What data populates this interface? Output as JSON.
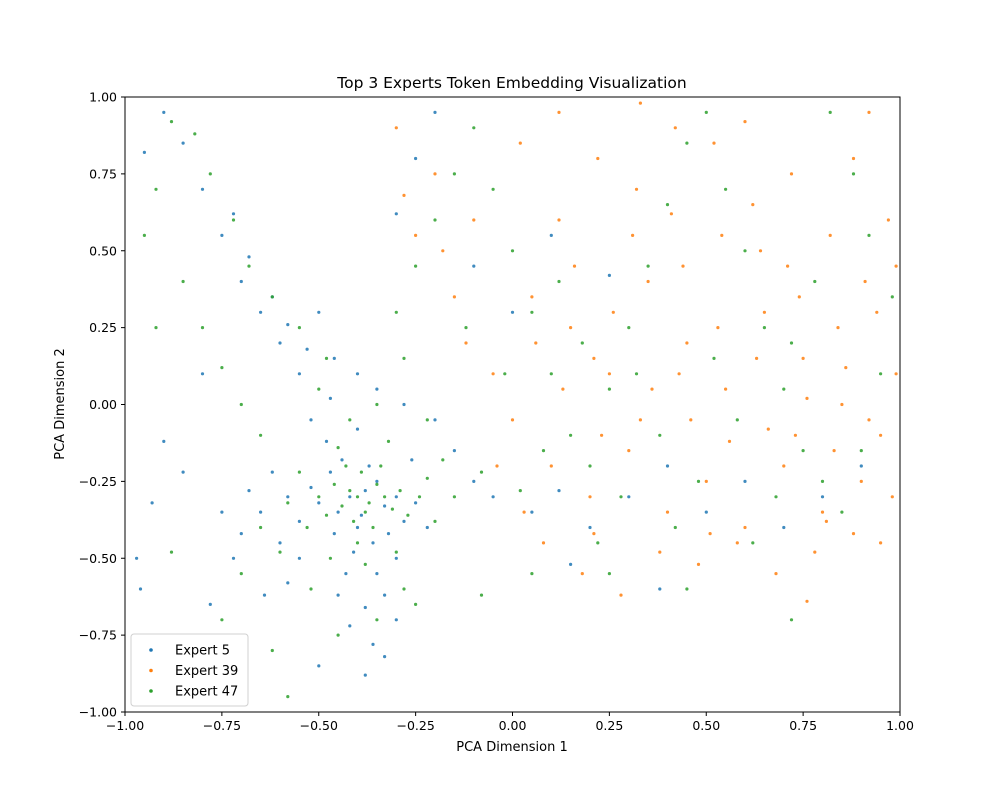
{
  "chart_data": {
    "type": "scatter",
    "title": "Top 3 Experts Token Embedding Visualization",
    "xlabel": "PCA Dimension 1",
    "ylabel": "PCA Dimension 2",
    "xlim": [
      -1.0,
      1.0
    ],
    "ylim": [
      -1.0,
      1.0
    ],
    "xticks": [
      "−1.00",
      "−0.75",
      "−0.50",
      "−0.25",
      "0.00",
      "0.25",
      "0.50",
      "0.75",
      "1.00"
    ],
    "yticks": [
      "−1.00",
      "−0.75",
      "−0.50",
      "−0.25",
      "0.00",
      "0.25",
      "0.50",
      "0.75",
      "1.00"
    ],
    "grid": false,
    "legend_position": "lower-left",
    "series": [
      {
        "name": "Expert 5",
        "color": "#1f77b4",
        "points": [
          [
            -0.42,
            -0.3
          ],
          [
            -0.38,
            -0.28
          ],
          [
            -0.45,
            -0.35
          ],
          [
            -0.35,
            -0.25
          ],
          [
            -0.5,
            -0.32
          ],
          [
            -0.4,
            -0.4
          ],
          [
            -0.33,
            -0.33
          ],
          [
            -0.47,
            -0.22
          ],
          [
            -0.36,
            -0.45
          ],
          [
            -0.55,
            -0.38
          ],
          [
            -0.3,
            -0.3
          ],
          [
            -0.44,
            -0.18
          ],
          [
            -0.39,
            -0.36
          ],
          [
            -0.52,
            -0.27
          ],
          [
            -0.41,
            -0.48
          ],
          [
            -0.28,
            -0.38
          ],
          [
            -0.58,
            -0.3
          ],
          [
            -0.37,
            -0.2
          ],
          [
            -0.46,
            -0.42
          ],
          [
            -0.32,
            -0.42
          ],
          [
            -0.6,
            -0.45
          ],
          [
            -0.43,
            -0.55
          ],
          [
            -0.35,
            -0.55
          ],
          [
            -0.65,
            -0.35
          ],
          [
            -0.25,
            -0.32
          ],
          [
            -0.48,
            -0.12
          ],
          [
            -0.4,
            -0.08
          ],
          [
            -0.55,
            -0.5
          ],
          [
            -0.62,
            -0.22
          ],
          [
            -0.3,
            -0.5
          ],
          [
            -0.7,
            -0.42
          ],
          [
            -0.45,
            -0.62
          ],
          [
            -0.38,
            -0.66
          ],
          [
            -0.22,
            -0.4
          ],
          [
            -0.52,
            -0.05
          ],
          [
            -0.68,
            -0.28
          ],
          [
            -0.58,
            -0.58
          ],
          [
            -0.33,
            -0.62
          ],
          [
            -0.72,
            -0.5
          ],
          [
            -0.47,
            0.02
          ],
          [
            -0.26,
            -0.18
          ],
          [
            -0.75,
            -0.35
          ],
          [
            -0.42,
            -0.72
          ],
          [
            -0.36,
            -0.78
          ],
          [
            -0.3,
            -0.7
          ],
          [
            -0.64,
            -0.62
          ],
          [
            -0.55,
            0.1
          ],
          [
            -0.6,
            0.2
          ],
          [
            -0.65,
            0.3
          ],
          [
            -0.7,
            0.4
          ],
          [
            -0.75,
            0.55
          ],
          [
            -0.8,
            0.7
          ],
          [
            -0.85,
            0.85
          ],
          [
            -0.9,
            0.95
          ],
          [
            -0.95,
            0.82
          ],
          [
            -0.97,
            -0.5
          ],
          [
            -0.96,
            -0.6
          ],
          [
            -0.93,
            -0.32
          ],
          [
            -0.9,
            -0.12
          ],
          [
            -0.85,
            -0.22
          ],
          [
            -0.8,
            0.1
          ],
          [
            -0.78,
            -0.65
          ],
          [
            -0.72,
            0.62
          ],
          [
            -0.68,
            0.48
          ],
          [
            -0.62,
            0.35
          ],
          [
            -0.58,
            0.26
          ],
          [
            -0.53,
            0.18
          ],
          [
            -0.5,
            0.3
          ],
          [
            -0.46,
            0.15
          ],
          [
            -0.4,
            0.1
          ],
          [
            -0.35,
            0.05
          ],
          [
            -0.28,
            0.0
          ],
          [
            -0.2,
            -0.05
          ],
          [
            -0.15,
            -0.15
          ],
          [
            -0.1,
            -0.25
          ],
          [
            -0.05,
            -0.3
          ],
          [
            0.05,
            -0.35
          ],
          [
            0.12,
            -0.28
          ],
          [
            0.2,
            -0.4
          ],
          [
            0.3,
            -0.3
          ],
          [
            0.4,
            -0.2
          ],
          [
            0.5,
            -0.35
          ],
          [
            0.6,
            -0.25
          ],
          [
            0.7,
            -0.4
          ],
          [
            0.8,
            -0.3
          ],
          [
            0.9,
            -0.2
          ],
          [
            0.38,
            -0.6
          ],
          [
            0.15,
            -0.52
          ],
          [
            -0.38,
            -0.88
          ],
          [
            -0.33,
            -0.82
          ],
          [
            -0.5,
            -0.85
          ],
          [
            -0.3,
            0.62
          ],
          [
            -0.25,
            0.8
          ],
          [
            -0.2,
            0.95
          ],
          [
            -0.1,
            0.45
          ],
          [
            0.0,
            0.3
          ],
          [
            0.1,
            0.55
          ],
          [
            0.25,
            0.42
          ]
        ]
      },
      {
        "name": "Expert 39",
        "color": "#ff7f0e",
        "points": [
          [
            0.05,
            0.35
          ],
          [
            0.15,
            0.25
          ],
          [
            0.25,
            0.1
          ],
          [
            0.35,
            0.4
          ],
          [
            0.45,
            0.2
          ],
          [
            0.55,
            0.05
          ],
          [
            0.65,
            0.3
          ],
          [
            0.75,
            0.15
          ],
          [
            0.85,
            0.0
          ],
          [
            0.95,
            -0.1
          ],
          [
            0.1,
            -0.2
          ],
          [
            0.2,
            -0.3
          ],
          [
            0.3,
            -0.15
          ],
          [
            0.4,
            -0.35
          ],
          [
            0.5,
            -0.25
          ],
          [
            0.6,
            -0.4
          ],
          [
            0.7,
            -0.2
          ],
          [
            0.8,
            -0.35
          ],
          [
            0.9,
            -0.25
          ],
          [
            0.98,
            -0.3
          ],
          [
            0.12,
            0.6
          ],
          [
            0.22,
            0.8
          ],
          [
            0.32,
            0.7
          ],
          [
            0.42,
            0.9
          ],
          [
            0.52,
            0.85
          ],
          [
            0.62,
            0.65
          ],
          [
            0.72,
            0.75
          ],
          [
            0.82,
            0.55
          ],
          [
            0.92,
            0.95
          ],
          [
            0.97,
            0.6
          ],
          [
            -0.3,
            0.9
          ],
          [
            -0.2,
            0.75
          ],
          [
            -0.1,
            0.6
          ],
          [
            -0.25,
            0.55
          ],
          [
            -0.15,
            0.35
          ],
          [
            -0.05,
            0.1
          ],
          [
            0.0,
            -0.05
          ],
          [
            0.08,
            -0.45
          ],
          [
            0.18,
            -0.55
          ],
          [
            0.28,
            -0.62
          ],
          [
            0.38,
            -0.48
          ],
          [
            0.48,
            -0.52
          ],
          [
            0.58,
            -0.45
          ],
          [
            0.68,
            -0.55
          ],
          [
            0.78,
            -0.48
          ],
          [
            0.88,
            -0.42
          ],
          [
            0.95,
            -0.45
          ],
          [
            0.76,
            -0.64
          ],
          [
            0.44,
            0.45
          ],
          [
            0.54,
            0.55
          ],
          [
            0.64,
            0.5
          ],
          [
            0.74,
            0.35
          ],
          [
            0.84,
            0.25
          ],
          [
            0.94,
            0.3
          ],
          [
            0.86,
            0.12
          ],
          [
            0.76,
            0.02
          ],
          [
            0.66,
            -0.08
          ],
          [
            0.56,
            -0.12
          ],
          [
            0.46,
            -0.05
          ],
          [
            0.36,
            0.05
          ],
          [
            0.26,
            0.3
          ],
          [
            0.16,
            0.45
          ],
          [
            0.06,
            0.2
          ],
          [
            -0.04,
            -0.2
          ],
          [
            -0.12,
            0.2
          ],
          [
            -0.18,
            0.5
          ],
          [
            -0.28,
            0.68
          ],
          [
            0.02,
            0.85
          ],
          [
            0.12,
            0.95
          ],
          [
            0.33,
            0.98
          ],
          [
            0.6,
            0.92
          ],
          [
            0.88,
            0.8
          ],
          [
            0.99,
            0.45
          ],
          [
            0.99,
            0.1
          ],
          [
            0.92,
            -0.05
          ],
          [
            0.83,
            -0.15
          ],
          [
            0.73,
            -0.1
          ],
          [
            0.63,
            0.15
          ],
          [
            0.53,
            0.25
          ],
          [
            0.43,
            0.1
          ],
          [
            0.33,
            -0.05
          ],
          [
            0.23,
            -0.1
          ],
          [
            0.13,
            0.05
          ],
          [
            0.03,
            -0.35
          ],
          [
            0.21,
            -0.42
          ],
          [
            0.51,
            -0.42
          ],
          [
            0.81,
            -0.38
          ],
          [
            0.91,
            0.4
          ],
          [
            0.71,
            0.45
          ],
          [
            0.41,
            0.62
          ],
          [
            0.31,
            0.55
          ],
          [
            0.21,
            0.15
          ]
        ]
      },
      {
        "name": "Expert 47",
        "color": "#2ca02c",
        "points": [
          [
            -0.4,
            -0.3
          ],
          [
            -0.37,
            -0.32
          ],
          [
            -0.42,
            -0.28
          ],
          [
            -0.35,
            -0.26
          ],
          [
            -0.38,
            -0.35
          ],
          [
            -0.44,
            -0.33
          ],
          [
            -0.33,
            -0.3
          ],
          [
            -0.39,
            -0.22
          ],
          [
            -0.41,
            -0.38
          ],
          [
            -0.36,
            -0.4
          ],
          [
            -0.46,
            -0.26
          ],
          [
            -0.31,
            -0.34
          ],
          [
            -0.43,
            -0.2
          ],
          [
            -0.34,
            -0.2
          ],
          [
            -0.48,
            -0.36
          ],
          [
            -0.29,
            -0.28
          ],
          [
            -0.4,
            -0.45
          ],
          [
            -0.5,
            -0.3
          ],
          [
            -0.27,
            -0.36
          ],
          [
            -0.45,
            -0.14
          ],
          [
            -0.32,
            -0.12
          ],
          [
            -0.53,
            -0.4
          ],
          [
            -0.24,
            -0.3
          ],
          [
            -0.38,
            -0.52
          ],
          [
            -0.55,
            -0.22
          ],
          [
            -0.22,
            -0.24
          ],
          [
            -0.47,
            -0.5
          ],
          [
            -0.3,
            -0.48
          ],
          [
            -0.58,
            -0.32
          ],
          [
            -0.2,
            -0.38
          ],
          [
            -0.42,
            -0.05
          ],
          [
            -0.35,
            0.0
          ],
          [
            -0.5,
            0.05
          ],
          [
            -0.6,
            -0.48
          ],
          [
            -0.18,
            -0.18
          ],
          [
            -0.52,
            -0.6
          ],
          [
            -0.28,
            -0.6
          ],
          [
            -0.65,
            -0.4
          ],
          [
            -0.15,
            -0.3
          ],
          [
            -0.48,
            0.15
          ],
          [
            -0.55,
            0.25
          ],
          [
            -0.62,
            0.35
          ],
          [
            -0.68,
            0.45
          ],
          [
            -0.72,
            0.6
          ],
          [
            -0.78,
            0.75
          ],
          [
            -0.82,
            0.88
          ],
          [
            -0.88,
            0.92
          ],
          [
            -0.92,
            0.7
          ],
          [
            -0.95,
            0.55
          ],
          [
            -0.85,
            0.4
          ],
          [
            -0.8,
            0.25
          ],
          [
            -0.75,
            0.12
          ],
          [
            -0.7,
            0.0
          ],
          [
            -0.65,
            -0.1
          ],
          [
            -0.7,
            -0.55
          ],
          [
            -0.75,
            -0.7
          ],
          [
            -0.62,
            -0.8
          ],
          [
            -0.58,
            -0.95
          ],
          [
            -0.45,
            -0.75
          ],
          [
            -0.35,
            -0.7
          ],
          [
            -0.25,
            -0.65
          ],
          [
            -0.3,
            0.3
          ],
          [
            -0.25,
            0.45
          ],
          [
            -0.2,
            0.6
          ],
          [
            -0.15,
            0.75
          ],
          [
            -0.1,
            0.9
          ],
          [
            -0.05,
            0.7
          ],
          [
            0.0,
            0.5
          ],
          [
            0.05,
            0.3
          ],
          [
            0.1,
            0.1
          ],
          [
            0.15,
            -0.1
          ],
          [
            0.2,
            -0.2
          ],
          [
            0.25,
            0.05
          ],
          [
            0.3,
            0.25
          ],
          [
            0.35,
            0.45
          ],
          [
            0.4,
            0.65
          ],
          [
            0.45,
            0.85
          ],
          [
            0.5,
            0.95
          ],
          [
            0.55,
            0.7
          ],
          [
            0.6,
            0.5
          ],
          [
            0.65,
            0.25
          ],
          [
            0.7,
            0.05
          ],
          [
            0.75,
            -0.15
          ],
          [
            0.8,
            -0.25
          ],
          [
            0.85,
            -0.35
          ],
          [
            0.9,
            -0.15
          ],
          [
            0.95,
            0.1
          ],
          [
            0.98,
            0.35
          ],
          [
            0.92,
            0.55
          ],
          [
            0.88,
            0.75
          ],
          [
            0.82,
            0.95
          ],
          [
            0.78,
            0.4
          ],
          [
            0.72,
            0.2
          ],
          [
            0.68,
            -0.3
          ],
          [
            0.62,
            -0.45
          ],
          [
            0.58,
            -0.05
          ],
          [
            0.52,
            0.15
          ],
          [
            0.48,
            -0.25
          ],
          [
            0.42,
            -0.4
          ],
          [
            0.38,
            -0.1
          ],
          [
            0.32,
            0.1
          ],
          [
            0.28,
            -0.3
          ],
          [
            0.22,
            -0.45
          ],
          [
            0.18,
            0.2
          ],
          [
            0.12,
            0.4
          ],
          [
            0.08,
            -0.15
          ],
          [
            0.02,
            -0.28
          ],
          [
            -0.02,
            0.1
          ],
          [
            -0.08,
            -0.22
          ],
          [
            -0.12,
            0.25
          ],
          [
            -0.22,
            -0.05
          ],
          [
            -0.28,
            0.15
          ],
          [
            0.05,
            -0.55
          ],
          [
            0.25,
            -0.55
          ],
          [
            0.45,
            -0.6
          ],
          [
            0.72,
            -0.7
          ],
          [
            -0.08,
            -0.62
          ],
          [
            -0.88,
            -0.48
          ],
          [
            -0.92,
            0.25
          ]
        ]
      }
    ]
  }
}
